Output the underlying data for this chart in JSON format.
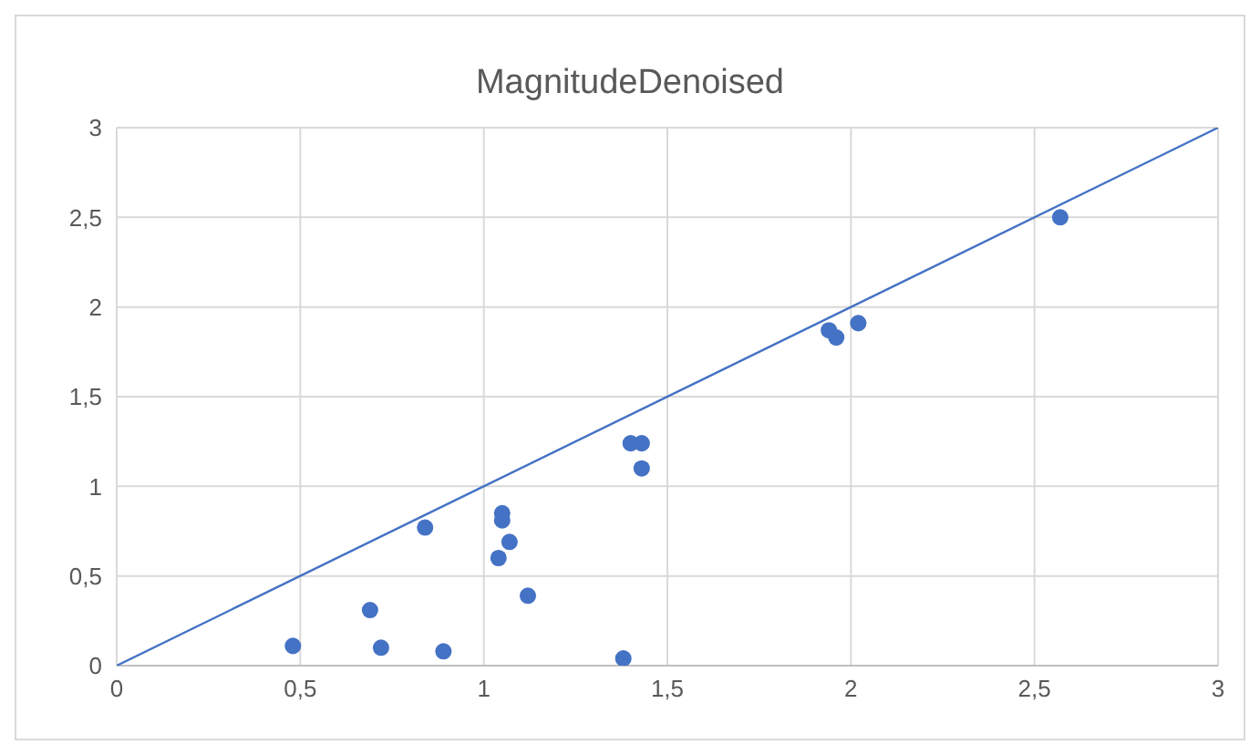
{
  "chart_data": {
    "type": "scatter",
    "title": "MagnitudeDenoised",
    "series": [
      {
        "marker": "circle",
        "color": "#4472c4",
        "x": [
          0.48,
          0.69,
          0.72,
          0.89,
          0.84,
          1.05,
          1.05,
          1.07,
          1.04,
          1.12,
          1.38,
          1.4,
          1.43,
          1.43,
          1.94,
          1.96,
          2.02,
          2.57
        ],
        "values": [
          0.11,
          0.31,
          0.1,
          0.08,
          0.77,
          0.85,
          0.81,
          0.69,
          0.6,
          0.39,
          0.04,
          1.24,
          1.24,
          1.1,
          1.87,
          1.83,
          1.91,
          2.5
        ]
      },
      {
        "type": "line",
        "marker": "none",
        "color": "#4472c4",
        "x": [
          0,
          3
        ],
        "values": [
          0,
          3
        ]
      }
    ],
    "xlim": [
      0,
      3
    ],
    "xticks": [
      0,
      {
        "value": 0.5,
        "label": "0,5"
      },
      1,
      {
        "value": 1.5,
        "label": "1,5"
      },
      2,
      {
        "value": 2.5,
        "label": "2,5"
      },
      3
    ],
    "ylim": [
      0,
      3
    ],
    "yticks": [
      0,
      {
        "value": 0.5,
        "label": "0,5"
      },
      1,
      {
        "value": 1.5,
        "label": "1,5"
      },
      2,
      {
        "value": 2.5,
        "label": "2,5"
      },
      3
    ],
    "grid": true,
    "line_style": "solid"
  }
}
